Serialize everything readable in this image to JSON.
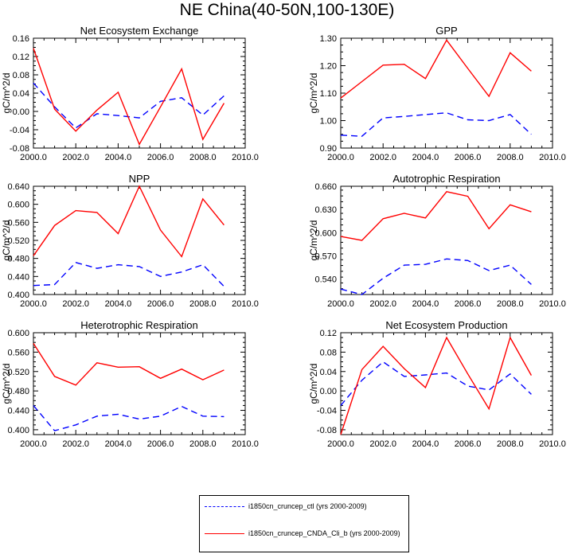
{
  "title": "NE China(40-50N,100-130E)",
  "colors": {
    "ctl": "#0000ff",
    "cnda": "#ff0000",
    "axis": "#000000"
  },
  "legend": [
    {
      "label": "i1850cn_cruncep_ctl (yrs 2000-2009)",
      "color": "#0000ff",
      "style": "dashed"
    },
    {
      "label": "i1850cn_cruncep_CNDA_Cli_b (yrs 2000-2009)",
      "color": "#ff0000",
      "style": "solid"
    }
  ],
  "chart_data": [
    {
      "type": "line",
      "title": "Net Ecosystem Exchange",
      "ylabel": "gC/m^2/d",
      "xlim": [
        2000,
        2010
      ],
      "ylim": [
        -0.08,
        0.16
      ],
      "xticks": [
        "2000.0",
        "2002.0",
        "2004.0",
        "2006.0",
        "2008.0",
        "2010.0"
      ],
      "yticks": [
        "-0.08",
        "-0.04",
        "0.00",
        "0.04",
        "0.08",
        "0.12",
        "0.16"
      ],
      "x": [
        2000,
        2001,
        2002,
        2003,
        2004,
        2005,
        2006,
        2007,
        2008,
        2009
      ],
      "series": [
        {
          "name": "i1850cn_cruncep_ctl (yrs 2000-2009)",
          "style": "dashed",
          "values": [
            0.062,
            0.01,
            -0.036,
            -0.005,
            -0.009,
            -0.014,
            0.022,
            0.03,
            -0.008,
            0.034
          ]
        },
        {
          "name": "i1850cn_cruncep_CNDA_Cli_b (yrs 2000-2009)",
          "style": "solid",
          "values": [
            0.138,
            0.005,
            -0.043,
            0.003,
            0.042,
            -0.072,
            0.01,
            0.093,
            -0.061,
            0.018
          ]
        }
      ]
    },
    {
      "type": "line",
      "title": "GPP",
      "ylabel": "gC/m^2/d",
      "xlim": [
        2000,
        2010
      ],
      "ylim": [
        0.9,
        1.3
      ],
      "xticks": [
        "2000.0",
        "2002.0",
        "2004.0",
        "2006.0",
        "2008.0",
        "2010.0"
      ],
      "yticks": [
        "0.90",
        "1.00",
        "1.10",
        "1.20",
        "1.30"
      ],
      "x": [
        2000,
        2001,
        2002,
        2003,
        2004,
        2005,
        2006,
        2007,
        2008,
        2009
      ],
      "series": [
        {
          "name": "i1850cn_cruncep_ctl (yrs 2000-2009)",
          "style": "dashed",
          "values": [
            0.947,
            0.943,
            1.01,
            1.015,
            1.022,
            1.028,
            1.003,
            1.0,
            1.022,
            0.95
          ]
        },
        {
          "name": "i1850cn_cruncep_CNDA_Cli_b (yrs 2000-2009)",
          "style": "solid",
          "values": [
            1.082,
            1.142,
            1.202,
            1.205,
            1.153,
            1.293,
            1.19,
            1.088,
            1.247,
            1.18
          ]
        }
      ]
    },
    {
      "type": "line",
      "title": "NPP",
      "ylabel": "gC/m^2/d",
      "xlim": [
        2000,
        2010
      ],
      "ylim": [
        0.4,
        0.64
      ],
      "xticks": [
        "2000.0",
        "2002.0",
        "2004.0",
        "2006.0",
        "2008.0",
        "2010.0"
      ],
      "yticks": [
        "0.400",
        "0.440",
        "0.480",
        "0.520",
        "0.560",
        "0.600",
        "0.640"
      ],
      "x": [
        2000,
        2001,
        2002,
        2003,
        2004,
        2005,
        2006,
        2007,
        2008,
        2009
      ],
      "series": [
        {
          "name": "i1850cn_cruncep_ctl (yrs 2000-2009)",
          "style": "dashed",
          "values": [
            0.42,
            0.422,
            0.471,
            0.458,
            0.466,
            0.462,
            0.44,
            0.45,
            0.466,
            0.418
          ]
        },
        {
          "name": "i1850cn_cruncep_CNDA_Cli_b (yrs 2000-2009)",
          "style": "solid",
          "values": [
            0.486,
            0.553,
            0.586,
            0.582,
            0.535,
            0.64,
            0.543,
            0.484,
            0.612,
            0.554
          ]
        }
      ]
    },
    {
      "type": "line",
      "title": "Autotrophic Respiration",
      "ylabel": "gC/m^2/d",
      "xlim": [
        2000,
        2010
      ],
      "ylim": [
        0.52,
        0.66
      ],
      "xticks": [
        "2000.0",
        "2002.0",
        "2004.0",
        "2006.0",
        "2008.0",
        "2010.0"
      ],
      "yticks": [
        "0.540",
        "0.570",
        "0.600",
        "0.630",
        "0.660"
      ],
      "x": [
        2000,
        2001,
        2002,
        2003,
        2004,
        2005,
        2006,
        2007,
        2008,
        2009
      ],
      "series": [
        {
          "name": "i1850cn_cruncep_ctl (yrs 2000-2009)",
          "style": "dashed",
          "values": [
            0.527,
            0.52,
            0.541,
            0.558,
            0.559,
            0.566,
            0.564,
            0.551,
            0.558,
            0.533
          ]
        },
        {
          "name": "i1850cn_cruncep_CNDA_Cli_b (yrs 2000-2009)",
          "style": "solid",
          "values": [
            0.595,
            0.59,
            0.618,
            0.625,
            0.619,
            0.653,
            0.647,
            0.605,
            0.636,
            0.627
          ]
        }
      ]
    },
    {
      "type": "line",
      "title": "Heterotrophic Respiration",
      "ylabel": "gC/m^2/d",
      "xlim": [
        2000,
        2010
      ],
      "ylim": [
        0.39,
        0.6
      ],
      "xticks": [
        "2000.0",
        "2002.0",
        "2004.0",
        "2006.0",
        "2008.0",
        "2010.0"
      ],
      "yticks": [
        "0.400",
        "0.440",
        "0.480",
        "0.520",
        "0.560",
        "0.600"
      ],
      "x": [
        2000,
        2001,
        2002,
        2003,
        2004,
        2005,
        2006,
        2007,
        2008,
        2009
      ],
      "series": [
        {
          "name": "i1850cn_cruncep_ctl (yrs 2000-2009)",
          "style": "dashed",
          "values": [
            0.45,
            0.398,
            0.41,
            0.428,
            0.432,
            0.422,
            0.428,
            0.448,
            0.428,
            0.427
          ]
        },
        {
          "name": "i1850cn_cruncep_CNDA_Cli_b (yrs 2000-2009)",
          "style": "solid",
          "values": [
            0.578,
            0.51,
            0.492,
            0.538,
            0.529,
            0.53,
            0.506,
            0.525,
            0.503,
            0.523
          ]
        }
      ]
    },
    {
      "type": "line",
      "title": "Net Ecosystem Production",
      "ylabel": "gC/m^2/d",
      "xlim": [
        2000,
        2010
      ],
      "ylim": [
        -0.09,
        0.12
      ],
      "xticks": [
        "2000.0",
        "2002.0",
        "2004.0",
        "2006.0",
        "2008.0",
        "2010.0"
      ],
      "yticks": [
        "-0.08",
        "-0.04",
        "0.00",
        "0.04",
        "0.08",
        "0.12"
      ],
      "x": [
        2000,
        2001,
        2002,
        2003,
        2004,
        2005,
        2006,
        2007,
        2008,
        2009
      ],
      "series": [
        {
          "name": "i1850cn_cruncep_ctl (yrs 2000-2009)",
          "style": "dashed",
          "values": [
            -0.03,
            0.022,
            0.06,
            0.03,
            0.033,
            0.037,
            0.01,
            0.002,
            0.035,
            -0.007
          ]
        },
        {
          "name": "i1850cn_cruncep_CNDA_Cli_b (yrs 2000-2009)",
          "style": "solid",
          "values": [
            -0.09,
            0.044,
            0.092,
            0.046,
            0.007,
            0.11,
            0.035,
            -0.037,
            0.11,
            0.032
          ]
        }
      ]
    }
  ]
}
